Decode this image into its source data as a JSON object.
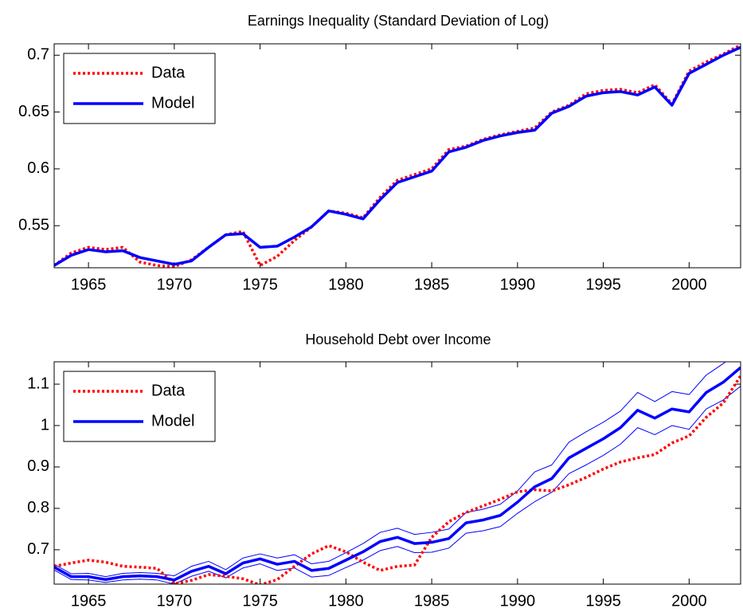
{
  "chart_data": [
    {
      "type": "line",
      "title": "Earnings Inequality (Standard Deviation of Log)",
      "x": [
        1963,
        1964,
        1965,
        1966,
        1967,
        1968,
        1969,
        1970,
        1971,
        1972,
        1973,
        1974,
        1975,
        1976,
        1977,
        1978,
        1979,
        1980,
        1981,
        1982,
        1983,
        1984,
        1985,
        1986,
        1987,
        1988,
        1989,
        1990,
        1991,
        1992,
        1993,
        1994,
        1995,
        1996,
        1997,
        1998,
        1999,
        2000,
        2001,
        2002,
        2003
      ],
      "series": [
        {
          "name": "Data",
          "color": "#ff0000",
          "dash": true,
          "width": 3.5,
          "values": [
            0.515,
            0.526,
            0.531,
            0.529,
            0.531,
            0.518,
            0.515,
            0.514,
            0.52,
            0.531,
            0.542,
            0.545,
            0.515,
            0.523,
            0.537,
            0.549,
            0.563,
            0.561,
            0.557,
            0.575,
            0.59,
            0.595,
            0.6,
            0.617,
            0.62,
            0.626,
            0.63,
            0.633,
            0.636,
            0.65,
            0.656,
            0.666,
            0.669,
            0.67,
            0.667,
            0.674,
            0.657,
            0.686,
            0.694,
            0.701,
            0.709
          ]
        },
        {
          "name": "Model",
          "color": "#0000ff",
          "dash": false,
          "width": 3.5,
          "values": [
            0.515,
            0.524,
            0.529,
            0.527,
            0.528,
            0.522,
            0.519,
            0.516,
            0.519,
            0.531,
            0.542,
            0.543,
            0.531,
            0.532,
            0.54,
            0.549,
            0.563,
            0.56,
            0.556,
            0.573,
            0.588,
            0.593,
            0.598,
            0.615,
            0.619,
            0.625,
            0.629,
            0.632,
            0.634,
            0.649,
            0.655,
            0.664,
            0.667,
            0.668,
            0.665,
            0.672,
            0.656,
            0.684,
            0.692,
            0.7,
            0.707
          ]
        }
      ],
      "xlim": [
        1963,
        2003
      ],
      "xticks": [
        1965,
        1970,
        1975,
        1980,
        1985,
        1990,
        1995,
        2000
      ],
      "ylim": [
        0.513,
        0.71
      ],
      "yticks": [
        0.55,
        0.6,
        0.65,
        0.7
      ],
      "grid": false,
      "legend": "upper-left"
    },
    {
      "type": "line",
      "title": "Household Debt over Income",
      "x": [
        1963,
        1964,
        1965,
        1966,
        1967,
        1968,
        1969,
        1970,
        1971,
        1972,
        1973,
        1974,
        1975,
        1976,
        1977,
        1978,
        1979,
        1980,
        1981,
        1982,
        1983,
        1984,
        1985,
        1986,
        1987,
        1988,
        1989,
        1990,
        1991,
        1992,
        1993,
        1994,
        1995,
        1996,
        1997,
        1998,
        1999,
        2000,
        2001,
        2002,
        2003
      ],
      "series": [
        {
          "color": "#0000ff",
          "dash": false,
          "width": 1,
          "values": [
            0.665,
            0.642,
            0.643,
            0.635,
            0.643,
            0.645,
            0.643,
            0.637,
            0.66,
            0.672,
            0.652,
            0.68,
            0.69,
            0.68,
            0.688,
            0.666,
            0.672,
            0.693,
            0.715,
            0.742,
            0.752,
            0.737,
            0.742,
            0.75,
            0.79,
            0.798,
            0.81,
            0.842,
            0.888,
            0.905,
            0.96,
            0.985,
            1.008,
            1.035,
            1.08,
            1.058,
            1.082,
            1.075,
            1.122,
            1.15,
            1.185
          ]
        },
        {
          "color": "#0000ff",
          "dash": false,
          "width": 1,
          "values": [
            0.651,
            0.628,
            0.627,
            0.621,
            0.627,
            0.629,
            0.627,
            0.617,
            0.636,
            0.648,
            0.632,
            0.656,
            0.666,
            0.65,
            0.656,
            0.634,
            0.638,
            0.657,
            0.675,
            0.698,
            0.708,
            0.693,
            0.694,
            0.704,
            0.74,
            0.746,
            0.756,
            0.788,
            0.816,
            0.839,
            0.884,
            0.905,
            0.928,
            0.955,
            0.995,
            0.978,
            1.0,
            0.991,
            1.04,
            1.062,
            1.095
          ]
        },
        {
          "name": "Data",
          "color": "#ff0000",
          "dash": true,
          "width": 3.5,
          "values": [
            0.66,
            0.668,
            0.675,
            0.67,
            0.66,
            0.658,
            0.655,
            0.618,
            0.626,
            0.64,
            0.636,
            0.63,
            0.615,
            0.628,
            0.66,
            0.69,
            0.71,
            0.695,
            0.67,
            0.65,
            0.66,
            0.663,
            0.73,
            0.768,
            0.79,
            0.806,
            0.822,
            0.84,
            0.845,
            0.842,
            0.857,
            0.875,
            0.895,
            0.912,
            0.922,
            0.93,
            0.958,
            0.975,
            1.02,
            1.055,
            1.12
          ]
        },
        {
          "name": "Model",
          "color": "#0000ff",
          "dash": false,
          "width": 3.5,
          "values": [
            0.658,
            0.635,
            0.635,
            0.628,
            0.635,
            0.637,
            0.635,
            0.627,
            0.648,
            0.66,
            0.642,
            0.668,
            0.678,
            0.665,
            0.672,
            0.65,
            0.655,
            0.675,
            0.695,
            0.72,
            0.73,
            0.715,
            0.718,
            0.727,
            0.765,
            0.772,
            0.783,
            0.815,
            0.852,
            0.872,
            0.922,
            0.945,
            0.968,
            0.995,
            1.037,
            1.018,
            1.04,
            1.033,
            1.08,
            1.105,
            1.14
          ]
        }
      ],
      "xlim": [
        1963,
        2003
      ],
      "xticks": [
        1965,
        1970,
        1975,
        1980,
        1985,
        1990,
        1995,
        2000
      ],
      "ylim": [
        0.617,
        1.154
      ],
      "yticks": [
        0.7,
        0.8,
        0.9,
        1,
        1.1
      ],
      "grid": false,
      "legend": "upper-left"
    }
  ]
}
